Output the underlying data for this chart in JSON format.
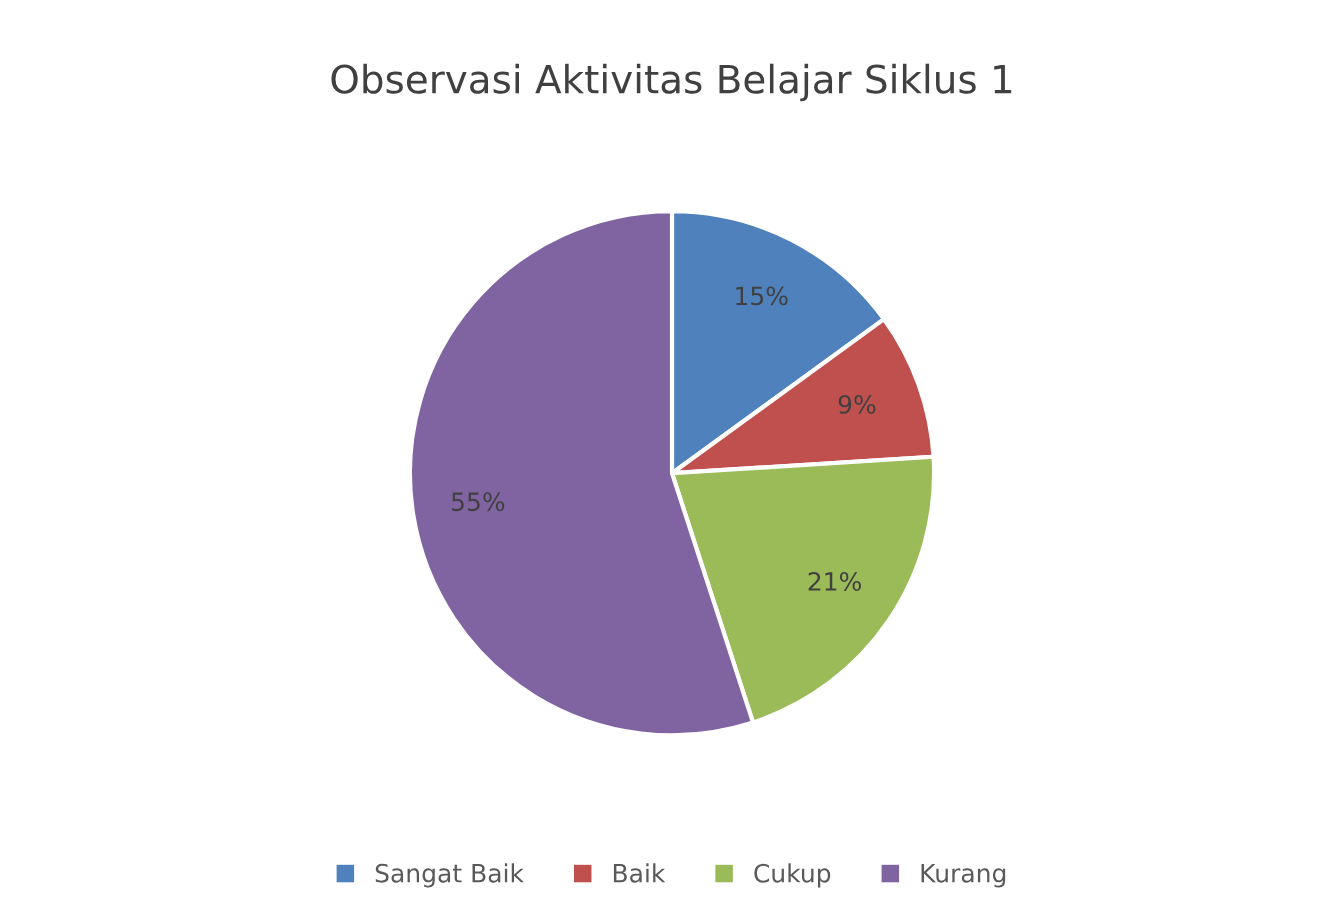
{
  "chart_data": {
    "type": "pie",
    "title": "Observasi Aktivitas Belajar Siklus 1",
    "categories": [
      "Sangat Baik",
      "Baik",
      "Cukup",
      "Kurang"
    ],
    "values": [
      15,
      9,
      21,
      55
    ],
    "colors": [
      "#4f81bd",
      "#c0504d",
      "#9bbb59",
      "#8064a2"
    ],
    "value_labels": [
      "15%",
      "9%",
      "21%",
      "55%"
    ],
    "legend": "bottom"
  }
}
